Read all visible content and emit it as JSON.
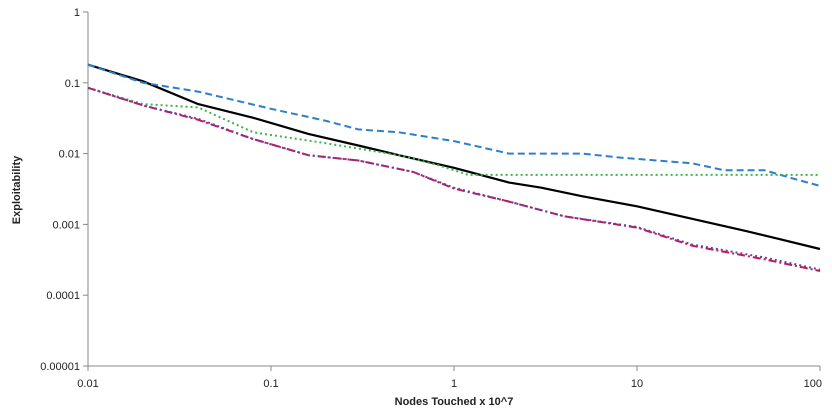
{
  "chart_data": {
    "type": "line",
    "title": "",
    "xlabel": "Nodes Touched x 10^7",
    "ylabel": "Exploitability",
    "x_scale": "log",
    "y_scale": "log",
    "xlim": [
      0.01,
      100
    ],
    "ylim": [
      1e-05,
      1
    ],
    "x_ticks": [
      {
        "value": 0.01,
        "label": "0.01"
      },
      {
        "value": 0.1,
        "label": "0.1"
      },
      {
        "value": 1,
        "label": "1"
      },
      {
        "value": 10,
        "label": "10"
      },
      {
        "value": 100,
        "label": "100"
      }
    ],
    "y_ticks": [
      {
        "value": 1e-05,
        "label": "0.00001"
      },
      {
        "value": 0.0001,
        "label": "0.0001"
      },
      {
        "value": 0.001,
        "label": "0.001"
      },
      {
        "value": 0.01,
        "label": "0.01"
      },
      {
        "value": 0.1,
        "label": "0.1"
      },
      {
        "value": 1,
        "label": "1"
      }
    ],
    "grid": false,
    "legend": "none",
    "series": [
      {
        "color": "#000000",
        "style": "solid",
        "points": [
          [
            0.01,
            0.18
          ],
          [
            0.02,
            0.105
          ],
          [
            0.04,
            0.05
          ],
          [
            0.08,
            0.032
          ],
          [
            0.16,
            0.019
          ],
          [
            0.3,
            0.013
          ],
          [
            0.5,
            0.0095
          ],
          [
            1,
            0.0063
          ],
          [
            2,
            0.0039
          ],
          [
            3,
            0.0033
          ],
          [
            5,
            0.0025
          ],
          [
            10,
            0.0018
          ],
          [
            20,
            0.0012
          ],
          [
            40,
            0.0008
          ],
          [
            60,
            0.00062
          ],
          [
            100,
            0.00045
          ]
        ]
      },
      {
        "color": "#2e7fc8",
        "style": "dashed",
        "points": [
          [
            0.01,
            0.18
          ],
          [
            0.02,
            0.1
          ],
          [
            0.04,
            0.075
          ],
          [
            0.1,
            0.043
          ],
          [
            0.2,
            0.029
          ],
          [
            0.3,
            0.022
          ],
          [
            0.5,
            0.02
          ],
          [
            1,
            0.015
          ],
          [
            2,
            0.01
          ],
          [
            5,
            0.01
          ],
          [
            8,
            0.0088
          ],
          [
            20,
            0.0073
          ],
          [
            30,
            0.0058
          ],
          [
            50,
            0.0058
          ],
          [
            70,
            0.0045
          ],
          [
            100,
            0.0035
          ]
        ]
      },
      {
        "color": "#3cb44b",
        "style": "dotted",
        "points": [
          [
            0.01,
            0.085
          ],
          [
            0.02,
            0.05
          ],
          [
            0.04,
            0.045
          ],
          [
            0.08,
            0.02
          ],
          [
            0.2,
            0.014
          ],
          [
            0.5,
            0.0095
          ],
          [
            0.8,
            0.007
          ],
          [
            1.2,
            0.005
          ],
          [
            10,
            0.005
          ],
          [
            100,
            0.005
          ]
        ]
      },
      {
        "color": "#c2185b",
        "style": "dash-dot",
        "points": [
          [
            0.01,
            0.085
          ],
          [
            0.02,
            0.048
          ],
          [
            0.04,
            0.03
          ],
          [
            0.08,
            0.016
          ],
          [
            0.16,
            0.0095
          ],
          [
            0.3,
            0.008
          ],
          [
            0.6,
            0.0055
          ],
          [
            1,
            0.0032
          ],
          [
            2,
            0.0021
          ],
          [
            4,
            0.0013
          ],
          [
            10,
            0.0009
          ],
          [
            20,
            0.0005
          ],
          [
            50,
            0.00032
          ],
          [
            100,
            0.00022
          ]
        ]
      },
      {
        "color": "#6a3fa0",
        "style": "dotted",
        "points": [
          [
            0.01,
            0.085
          ],
          [
            0.02,
            0.048
          ],
          [
            0.04,
            0.031
          ],
          [
            0.08,
            0.016
          ],
          [
            0.16,
            0.0095
          ],
          [
            0.3,
            0.008
          ],
          [
            0.6,
            0.0055
          ],
          [
            1,
            0.0033
          ],
          [
            2,
            0.0021
          ],
          [
            4,
            0.0013
          ],
          [
            10,
            0.00092
          ],
          [
            20,
            0.00052
          ],
          [
            50,
            0.00034
          ],
          [
            100,
            0.00023
          ]
        ]
      }
    ]
  }
}
